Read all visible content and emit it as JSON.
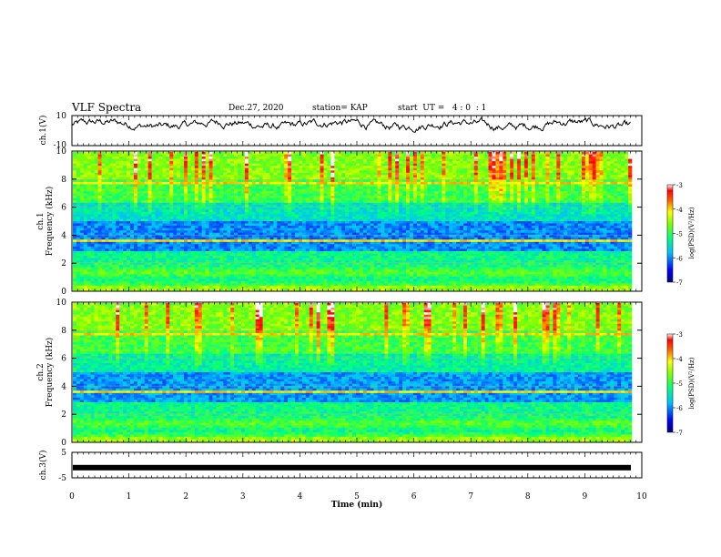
{
  "header": {
    "title": "VLF Spectra",
    "date": "Dec.27, 2020",
    "station": "station= KAP",
    "start_ut": "start  UT =   4 : 0  : 1"
  },
  "chart_data": [
    {
      "type": "line",
      "name": "ch1-waveform",
      "ylabel": "ch.1(V)",
      "ylim": [
        -10,
        10
      ],
      "yticks": [
        "10",
        "-10"
      ],
      "xlim": [
        0,
        10
      ],
      "description_of_trace": "noisy voltage trace oscillating roughly between 0 and 8 V"
    },
    {
      "type": "heatmap",
      "name": "ch1-spectrogram",
      "ylabel": "ch.1\nFrequency (kHz)",
      "ylim": [
        0,
        10
      ],
      "yticks": [
        "0",
        "2",
        "4",
        "6",
        "8",
        "10"
      ],
      "xlim": [
        0,
        10
      ],
      "colorbar": {
        "label": "log(PSD)(V²/Hz)",
        "range": [
          -7,
          -3
        ],
        "ticks": [
          "-3",
          "-4",
          "-5",
          "-6",
          "-7"
        ]
      }
    },
    {
      "type": "heatmap",
      "name": "ch2-spectrogram",
      "ylabel": "ch.2\nFrequency (kHz)",
      "ylim": [
        0,
        10
      ],
      "yticks": [
        "0",
        "2",
        "4",
        "6",
        "8",
        "10"
      ],
      "xlim": [
        0,
        10
      ],
      "colorbar": {
        "label": "log(PSD)(V²/Hz)",
        "range": [
          -7,
          -3
        ],
        "ticks": [
          "-3",
          "-4",
          "-5",
          "-6",
          "-7"
        ]
      }
    },
    {
      "type": "line",
      "name": "ch3-waveform",
      "ylabel": "ch.3(V)",
      "ylim": [
        -5,
        5
      ],
      "yticks": [
        "5",
        "-5"
      ],
      "xlim": [
        0,
        10
      ],
      "level": -1
    }
  ],
  "x_axis": {
    "label": "Time  (min)",
    "ticks": [
      "0",
      "1",
      "2",
      "3",
      "4",
      "5",
      "6",
      "7",
      "8",
      "9",
      "10"
    ]
  },
  "colors": {
    "cmap": [
      "#000080",
      "#0000ff",
      "#0080ff",
      "#00ffff",
      "#00ff80",
      "#80ff00",
      "#ffff00",
      "#ff8000",
      "#ff0000",
      "#ffffff"
    ]
  }
}
